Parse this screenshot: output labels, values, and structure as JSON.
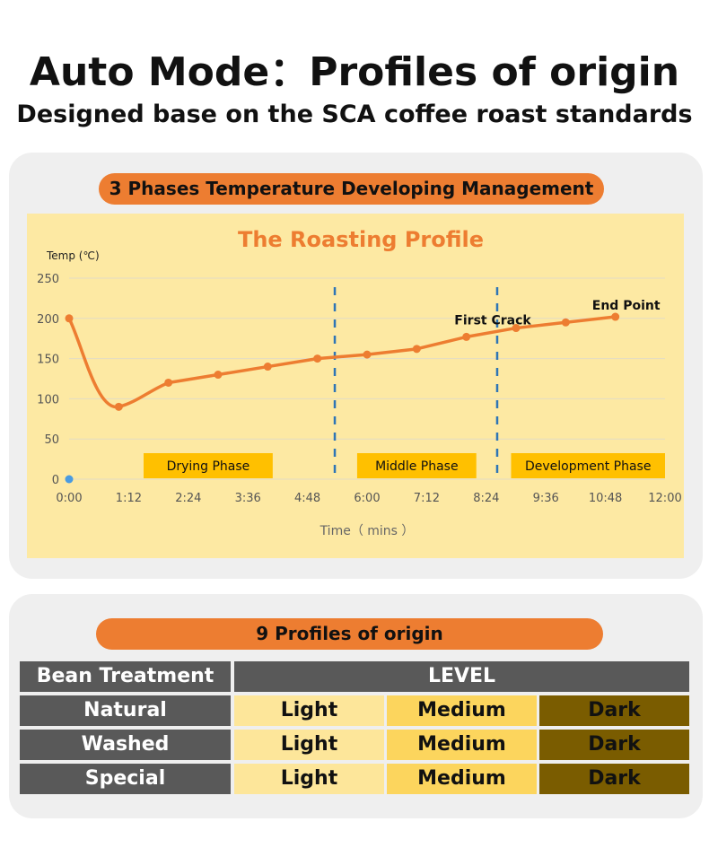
{
  "header": {
    "title": "Auto Mode：Profiles of origin",
    "subtitle": "Designed base on the SCA coffee roast standards"
  },
  "section1": {
    "pill": "3 Phases Temperature Developing Management"
  },
  "chart_data": {
    "type": "line",
    "title": "The Roasting Profile",
    "ylabel": "Temp (℃)",
    "xlabel": "Time（ mins ）",
    "ylim": [
      0,
      250
    ],
    "xlim": [
      0,
      12
    ],
    "yticks": [
      "0",
      "50",
      "100",
      "150",
      "200",
      "250"
    ],
    "xticks": [
      "0:00",
      "1:12",
      "2:24",
      "3:36",
      "4:48",
      "6:00",
      "7:12",
      "8:24",
      "9:36",
      "10:48",
      "12:00"
    ],
    "grid": true,
    "series": [
      {
        "x": [
          0,
          1,
          2,
          3,
          4,
          5,
          6,
          7,
          8,
          9,
          10,
          11
        ],
        "y": [
          200,
          90,
          120,
          130,
          140,
          150,
          155,
          162,
          177,
          188,
          195,
          202
        ],
        "color": "#ed7d31"
      }
    ],
    "origin_marker_color": "#4a9be0",
    "phase_dividers": [
      5.35,
      8.62
    ],
    "divider_color": "#2e75b6",
    "annotations": [
      {
        "text": "First  Crack",
        "x": 9,
        "y": 188
      },
      {
        "text": "End Point",
        "x": 11,
        "y": 202
      }
    ],
    "phases": [
      {
        "label": "Drying Phase",
        "start": 1.5,
        "end": 4.1
      },
      {
        "label": "Middle Phase",
        "start": 5.8,
        "end": 8.2
      },
      {
        "label": "Development Phase",
        "start": 8.9,
        "end": 12
      }
    ],
    "phase_color": "#ffc000"
  },
  "section2": {
    "pill": "9 Profiles of origin",
    "table": {
      "headers": [
        "Bean Treatment",
        "LEVEL"
      ],
      "rows": [
        {
          "treatment": "Natural",
          "levels": [
            "Light",
            "Medium",
            "Dark"
          ]
        },
        {
          "treatment": "Washed",
          "levels": [
            "Light",
            "Medium",
            "Dark"
          ]
        },
        {
          "treatment": "Special",
          "levels": [
            "Light",
            "Medium",
            "Dark"
          ]
        }
      ]
    }
  }
}
